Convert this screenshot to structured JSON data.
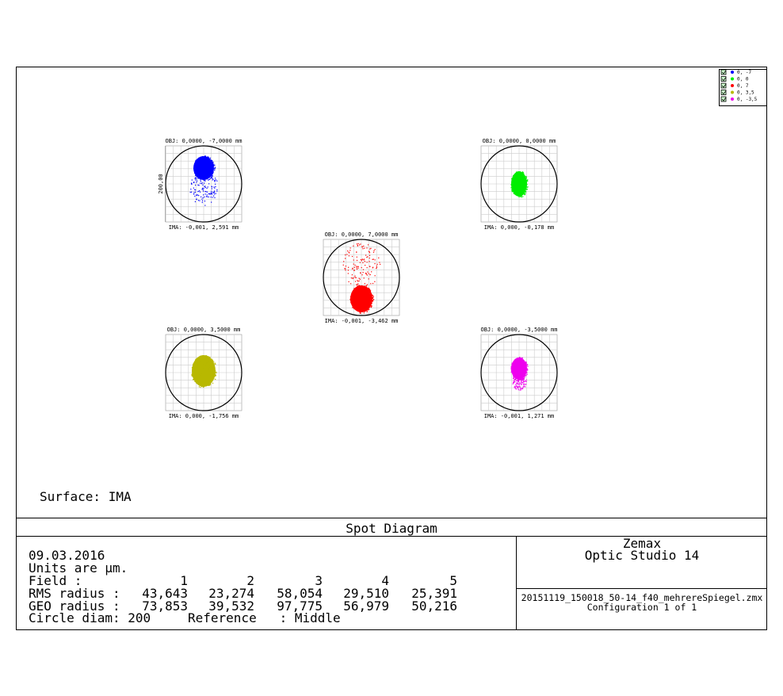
{
  "legend": [
    {
      "label": "0, -7",
      "color": "#0000ff"
    },
    {
      "label": "0, 0",
      "color": "#00ee00"
    },
    {
      "label": "0, 7",
      "color": "#ff0000"
    },
    {
      "label": "0, 3,5",
      "color": "#b8b800"
    },
    {
      "label": "0, -3,5",
      "color": "#ee00ee"
    }
  ],
  "spots": [
    {
      "obj": "OBJ: 0,0000, -7,0000 mm",
      "ima": "IMA: -0,001, 2,591 mm"
    },
    {
      "obj": "OBJ: 0,0000, 0,0000 mm",
      "ima": "IMA: 0,000, -0,178 mm"
    },
    {
      "obj": "OBJ: 0,0000, 7,0000 mm",
      "ima": "IMA: -0,001, -3,462 mm"
    },
    {
      "obj": "OBJ: 0,0000, 3,5000 mm",
      "ima": "IMA: 0,000, -1,756 mm"
    },
    {
      "obj": "OBJ: 0,0000, -3,5000 mm",
      "ima": "IMA: -0,001, 1,271 mm"
    }
  ],
  "scale_label": "200,00",
  "surface": "Surface: IMA",
  "footer": {
    "title": "Spot Diagram",
    "date": "09.03.2016",
    "units": "Units are µm.",
    "rows": [
      {
        "label": "Field      :",
        "cells": [
          "1",
          "2",
          "3",
          "4",
          "5"
        ]
      },
      {
        "label": "RMS radius :",
        "cells": [
          "43,643",
          "23,274",
          "58,054",
          "29,510",
          "25,391"
        ]
      },
      {
        "label": "GEO radius :",
        "cells": [
          "73,853",
          "39,532",
          "97,775",
          "56,979",
          "50,216"
        ]
      }
    ],
    "circle": "Circle diam: 200",
    "reference": "Reference   : Middle",
    "company": "Zemax",
    "product": "Optic Studio 14",
    "file": "20151119_150018_50-14_f40_mehrereSpiegel.zmx",
    "config": "Configuration 1 of 1"
  }
}
